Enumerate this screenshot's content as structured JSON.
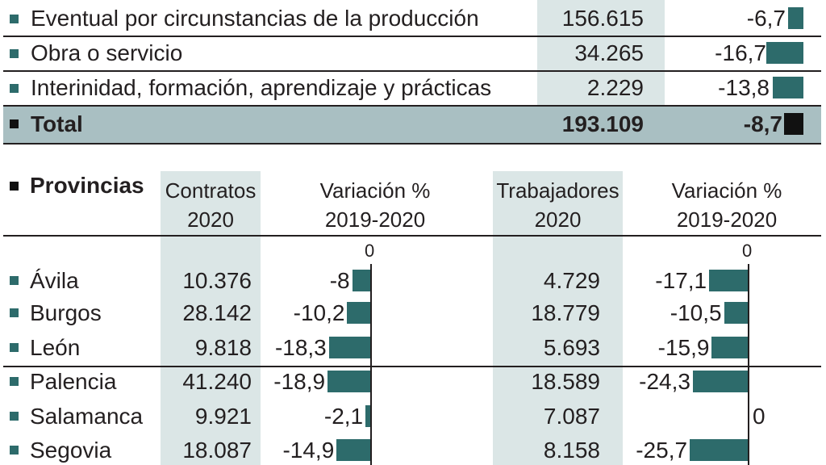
{
  "colors": {
    "bar": "#2d6b6b",
    "bar_total": "#111111",
    "shade": "#dbe6e6",
    "total_band": "#a9bfc2",
    "bullet": "#2d6b6b"
  },
  "top_table": {
    "rows": [
      {
        "label": "Eventual por circunstancias de la producción",
        "value": "156.615",
        "variation": "-6,7"
      },
      {
        "label": "Obra o servicio",
        "value": "34.265",
        "variation": "-16,7"
      },
      {
        "label": "Interinidad, formación, aprendizaje y prácticas",
        "value": "2.229",
        "variation": "-13,8"
      }
    ],
    "total": {
      "label": "Total",
      "value": "193.109",
      "variation": "-8,7"
    }
  },
  "provinces_table": {
    "title": "Provincias",
    "col_contratos": "Contratos 2020",
    "col_var1": "Variación % 2019-2020",
    "col_trabajadores": "Trabajadores 2020",
    "col_var2": "Variación % 2019-2020",
    "zero_label": "0",
    "rows": [
      {
        "name": "Ávila",
        "contratos": "10.376",
        "var1": "-8",
        "trabajadores": "4.729",
        "var2": "-17,1"
      },
      {
        "name": "Burgos",
        "contratos": "28.142",
        "var1": "-10,2",
        "trabajadores": "18.779",
        "var2": "-10,5"
      },
      {
        "name": "León",
        "contratos": "9.818",
        "var1": "-18,3",
        "trabajadores": "5.693",
        "var2": "-15,9"
      },
      {
        "name": "Palencia",
        "contratos": "41.240",
        "var1": "-18,9",
        "trabajadores": "18.589",
        "var2": "-24,3"
      },
      {
        "name": "Salamanca",
        "contratos": "9.921",
        "var1": "-2,1",
        "trabajadores": "7.087",
        "var2": "0"
      },
      {
        "name": "Segovia",
        "contratos": "18.087",
        "var1": "-14,9",
        "trabajadores": "8.158",
        "var2": "-25,7"
      }
    ]
  },
  "chart_data": {
    "type": "table",
    "top": {
      "categories": [
        "Eventual por circunstancias de la producción",
        "Obra o servicio",
        "Interinidad, formación, aprendizaje y prácticas",
        "Total"
      ],
      "series": [
        {
          "name": "",
          "values": [
            156615,
            34265,
            2229,
            193109
          ]
        },
        {
          "name": "",
          "values": [
            -6.7,
            -16.7,
            -13.8,
            -8.7
          ]
        }
      ]
    },
    "provinces": {
      "categories": [
        "Ávila",
        "Burgos",
        "León",
        "Palencia",
        "Salamanca",
        "Segovia"
      ],
      "series": [
        {
          "name": "Contratos 2020",
          "values": [
            10376,
            28142,
            9818,
            41240,
            9921,
            18087
          ]
        },
        {
          "name": "Variación % 2019-2020",
          "values": [
            -8,
            -10.2,
            -18.3,
            -18.9,
            -2.1,
            -14.9
          ]
        },
        {
          "name": "Trabajadores 2020",
          "values": [
            4729,
            18779,
            5693,
            18589,
            7087,
            8158
          ]
        },
        {
          "name": "Variación % 2019-2020",
          "values": [
            -17.1,
            -10.5,
            -15.9,
            -24.3,
            0,
            -25.7
          ]
        }
      ]
    }
  }
}
